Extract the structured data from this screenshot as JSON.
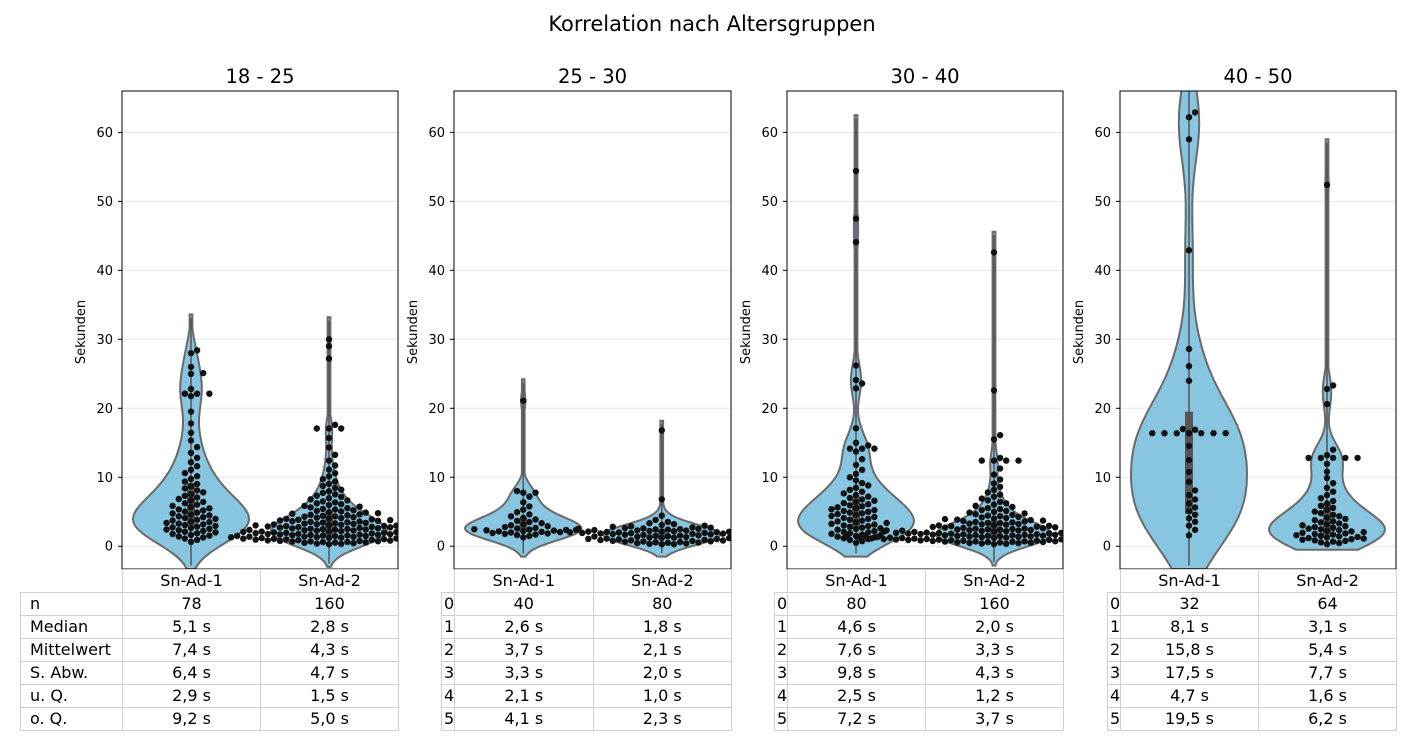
{
  "figure": {
    "suptitle": "Korrelation nach Altersgruppen"
  },
  "colors": {
    "violin_fill": "#87c5e0",
    "violin_edge": "#6a6a6a",
    "point": "#111111",
    "grid": "#e6e6e6",
    "table_border": "#d0d0d0"
  },
  "chart_data": [
    {
      "type": "violin+swarm",
      "title": "18 - 25",
      "ylabel": "Sekunden",
      "ylim": [
        -3.3,
        66
      ],
      "yticks": [
        0,
        10,
        20,
        30,
        40,
        50,
        60
      ],
      "grid": "y",
      "categories": [
        "Sn-Ad-1",
        "Sn-Ad-2"
      ],
      "violin_extent": [
        [
          -3.3,
          33.6
        ],
        [
          -3.0,
          33.2
        ]
      ],
      "outliers": [
        [
          22.8,
          25.0,
          25.1,
          26.0,
          28.0,
          28.4
        ],
        [
          17.6,
          27.2,
          29.0,
          30.0
        ]
      ],
      "table": {
        "row_labels": [
          "n",
          "Median",
          "Mittelwert",
          "S. Abw.",
          "u. Q.",
          "o. Q."
        ],
        "columns": [
          "Sn-Ad-1",
          "Sn-Ad-2"
        ],
        "rows": [
          [
            "78",
            "160"
          ],
          [
            "5,1 s",
            "2,8 s"
          ],
          [
            "7,4 s",
            "4,3 s"
          ],
          [
            "6,4 s",
            "4,7 s"
          ],
          [
            "2,9 s",
            "1,5 s"
          ],
          [
            "9,2 s",
            "5,0 s"
          ]
        ]
      }
    },
    {
      "type": "violin+swarm",
      "title": "25 - 30",
      "ylabel": "Sekunden",
      "ylim": [
        -3.3,
        66
      ],
      "yticks": [
        0,
        10,
        20,
        30,
        40,
        50,
        60
      ],
      "grid": "y",
      "categories": [
        "Sn-Ad-1",
        "Sn-Ad-2"
      ],
      "violin_extent": [
        [
          -1.5,
          24.2
        ],
        [
          -1.5,
          18.2
        ]
      ],
      "outliers": [
        [
          8.0,
          21.1
        ],
        [
          6.8,
          16.8
        ]
      ],
      "table": {
        "row_labels": [
          "0",
          "1",
          "2",
          "3",
          "4",
          "5"
        ],
        "columns": [
          "Sn-Ad-1",
          "Sn-Ad-2"
        ],
        "rows": [
          [
            "40",
            "80"
          ],
          [
            "2,6 s",
            "1,8 s"
          ],
          [
            "3,7 s",
            "2,1 s"
          ],
          [
            "3,3 s",
            "2,0 s"
          ],
          [
            "2,1 s",
            "1,0 s"
          ],
          [
            "4,1 s",
            "2,3 s"
          ]
        ]
      }
    },
    {
      "type": "violin+swarm",
      "title": "30 - 40",
      "ylabel": "Sekunden",
      "ylim": [
        -3.3,
        66
      ],
      "yticks": [
        0,
        10,
        20,
        30,
        40,
        50,
        60
      ],
      "grid": "y",
      "categories": [
        "Sn-Ad-1",
        "Sn-Ad-2"
      ],
      "violin_extent": [
        [
          -1.5,
          62.5
        ],
        [
          -2.8,
          45.6
        ]
      ],
      "outliers": [
        [
          14.6,
          15.0,
          17.1,
          22.9,
          23.6,
          24.1,
          26.2,
          44.1,
          47.5,
          54.4
        ],
        [
          12.8,
          15.5,
          16.1,
          22.6,
          42.6
        ]
      ],
      "table": {
        "row_labels": [
          "0",
          "1",
          "2",
          "3",
          "4",
          "5"
        ],
        "columns": [
          "Sn-Ad-1",
          "Sn-Ad-2"
        ],
        "rows": [
          [
            "80",
            "160"
          ],
          [
            "4,6 s",
            "2,0 s"
          ],
          [
            "7,6 s",
            "3,3 s"
          ],
          [
            "9,8 s",
            "4,3 s"
          ],
          [
            "2,5 s",
            "1,2 s"
          ],
          [
            "7,2 s",
            "3,7 s"
          ]
        ]
      }
    },
    {
      "type": "violin+swarm",
      "title": "40 - 50",
      "ylabel": "Sekunden",
      "ylim": [
        -3.3,
        66
      ],
      "yticks": [
        0,
        10,
        20,
        30,
        40,
        50,
        60
      ],
      "grid": "y",
      "categories": [
        "Sn-Ad-1",
        "Sn-Ad-2"
      ],
      "violin_extent": [
        [
          -3.3,
          68
        ],
        [
          -0.5,
          59.0
        ]
      ],
      "outliers": [
        [
          16.9,
          17.0,
          24.0,
          26.1,
          28.6,
          42.9,
          59.0,
          62.2,
          62.9
        ],
        [
          13.2,
          14.0,
          20.6,
          22.8,
          23.3,
          52.4
        ]
      ],
      "table": {
        "row_labels": [
          "0",
          "1",
          "2",
          "3",
          "4",
          "5"
        ],
        "columns": [
          "Sn-Ad-1",
          "Sn-Ad-2"
        ],
        "rows": [
          [
            "32",
            "64"
          ],
          [
            "8,1 s",
            "3,1 s"
          ],
          [
            "15,8 s",
            "5,4 s"
          ],
          [
            "17,5 s",
            "7,7 s"
          ],
          [
            "4,7 s",
            "1,6 s"
          ],
          [
            "19,5 s",
            "6,2 s"
          ]
        ]
      }
    }
  ]
}
